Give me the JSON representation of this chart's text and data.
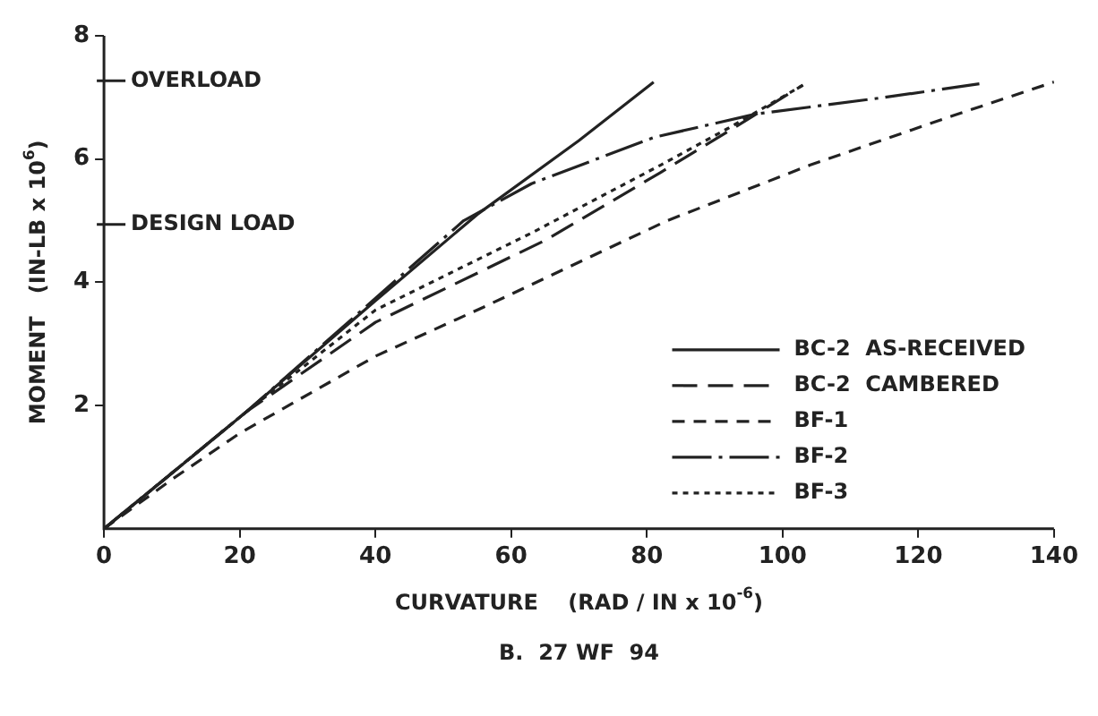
{
  "chart_data": {
    "type": "line",
    "title": "B.  27 WF  94",
    "xlabel": "CURVATURE    (RAD / IN x 10$^{-6}$)",
    "ylabel": "MOMENT   (IN-LB x 10$^{6}$)",
    "xlim": [
      0,
      140
    ],
    "xticks": [
      0,
      20,
      40,
      60,
      80,
      100,
      120,
      140
    ],
    "ylim": [
      0,
      8
    ],
    "yticks": [
      2,
      4,
      6,
      8
    ],
    "grid": false,
    "legend": "bottom right",
    "marker": "none",
    "ref_lines": [
      {
        "axis": "y",
        "value": 7.27,
        "label": "OVERLOAD"
      },
      {
        "axis": "y",
        "value": 4.94,
        "label": "DESIGN LOAD"
      }
    ],
    "series": [
      {
        "name": "BC-2  AS-RECEIVED",
        "color": "#222222",
        "line_style": "solid",
        "x": [
          0,
          10,
          21,
          40,
          55,
          70,
          81
        ],
        "values": [
          0,
          0.9,
          1.9,
          3.7,
          5.1,
          6.3,
          7.25
        ]
      },
      {
        "name": "BC-2  CAMBERED",
        "color": "#222222",
        "line_style": "dashed",
        "x": [
          0,
          10,
          21,
          40,
          65,
          82,
          92,
          103
        ],
        "values": [
          0,
          0.9,
          1.9,
          3.35,
          4.68,
          5.78,
          6.45,
          7.2
        ]
      },
      {
        "name": "BF-1",
        "color": "#222222",
        "line_style": "dashed",
        "x": [
          0,
          10,
          20,
          40,
          56,
          83,
          104,
          125,
          140
        ],
        "values": [
          0,
          0.8,
          1.55,
          2.8,
          3.6,
          5.0,
          5.9,
          6.7,
          7.25
        ]
      },
      {
        "name": "BF-2",
        "color": "#222222",
        "line_style": "dashed",
        "x": [
          0,
          21,
          53,
          63,
          81,
          96,
          115,
          129
        ],
        "values": [
          0,
          1.9,
          5.0,
          5.6,
          6.35,
          6.73,
          7.0,
          7.22
        ]
      },
      {
        "name": "BF-3",
        "color": "#222222",
        "line_style": "dotted",
        "x": [
          0,
          21,
          40,
          63,
          82,
          92,
          103
        ],
        "values": [
          0,
          1.9,
          3.55,
          4.8,
          5.9,
          6.5,
          7.2
        ]
      }
    ]
  }
}
